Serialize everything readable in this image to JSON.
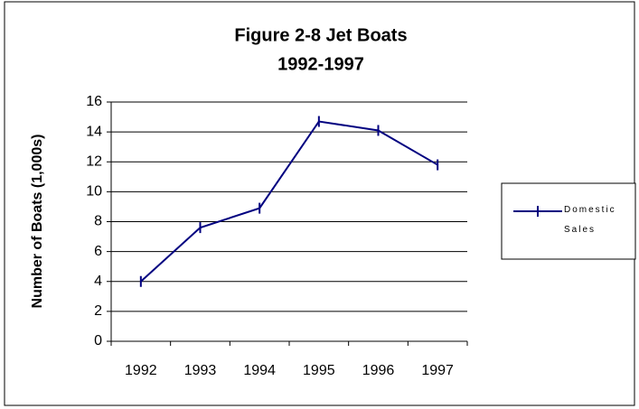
{
  "chart_data": {
    "type": "line",
    "title": "Figure 2-8 Jet Boats",
    "subtitle": "1992-1997",
    "y_label": "Number of Boats (1,000s)",
    "categories": [
      "1992",
      "1993",
      "1994",
      "1995",
      "1996",
      "1997"
    ],
    "series": [
      {
        "name": "Domestic Sales",
        "color": "#000080",
        "values": [
          4.0,
          7.6,
          8.9,
          14.7,
          14.1,
          11.8
        ]
      }
    ],
    "ylim": [
      0,
      16
    ],
    "yticks": [
      0,
      2,
      4,
      6,
      8,
      10,
      12,
      14,
      16
    ],
    "grid": true,
    "legend": "right"
  }
}
